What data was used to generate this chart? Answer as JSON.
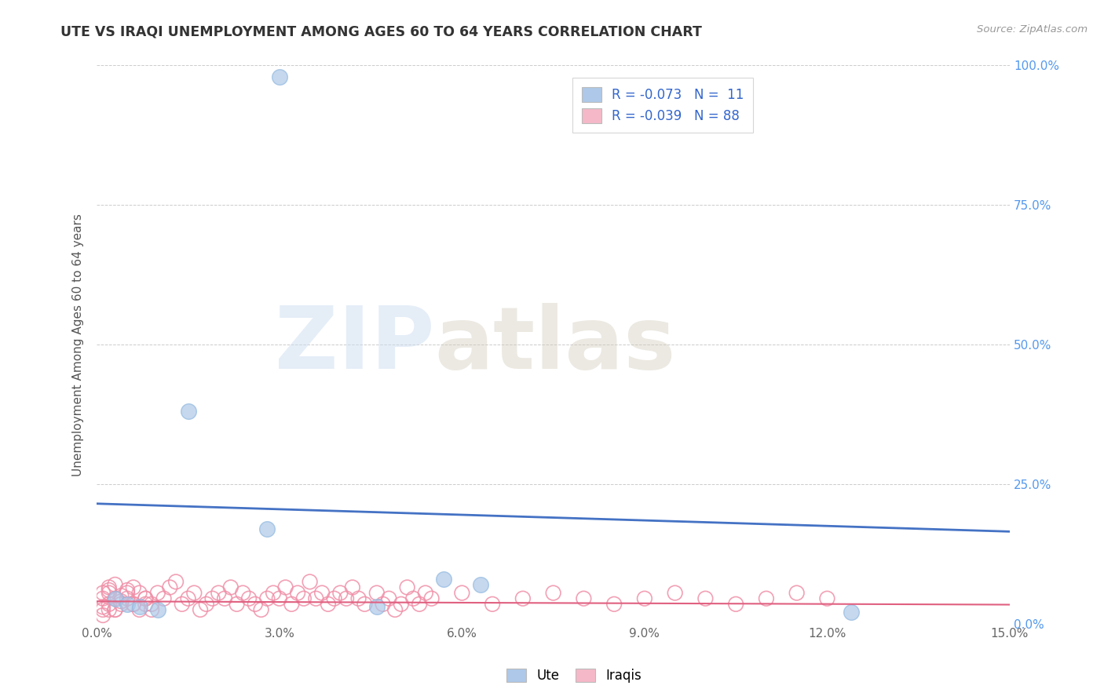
{
  "title": "UTE VS IRAQI UNEMPLOYMENT AMONG AGES 60 TO 64 YEARS CORRELATION CHART",
  "source": "Source: ZipAtlas.com",
  "ylabel": "Unemployment Among Ages 60 to 64 years",
  "xlim": [
    0.0,
    0.15
  ],
  "ylim": [
    0.0,
    1.0
  ],
  "xticks": [
    0.0,
    0.03,
    0.06,
    0.09,
    0.12,
    0.15
  ],
  "xticklabels": [
    "0.0%",
    "3.0%",
    "6.0%",
    "9.0%",
    "12.0%",
    "15.0%"
  ],
  "yticks": [
    0.0,
    0.25,
    0.5,
    0.75,
    1.0
  ],
  "yticklabels_right": [
    "0.0%",
    "25.0%",
    "50.0%",
    "75.0%",
    "100.0%"
  ],
  "watermark_zip": "ZIP",
  "watermark_atlas": "atlas",
  "legend_text_blue": "R = -0.073   N =  11",
  "legend_text_pink": "R = -0.039   N = 88",
  "legend_label_blue": "Ute",
  "legend_label_pink": "Iraqis",
  "blue_fill": "#adc8e8",
  "pink_fill": "#f5b8c8",
  "blue_edge": "#90b8e0",
  "pink_edge": "#f090a8",
  "blue_line_color": "#4472c4",
  "pink_line_color": "#e06080",
  "blue_scatter": [
    [
      0.03,
      0.98
    ],
    [
      0.015,
      0.38
    ],
    [
      0.028,
      0.17
    ],
    [
      0.003,
      0.045
    ],
    [
      0.005,
      0.035
    ],
    [
      0.007,
      0.03
    ],
    [
      0.01,
      0.025
    ],
    [
      0.046,
      0.03
    ],
    [
      0.057,
      0.08
    ],
    [
      0.063,
      0.07
    ],
    [
      0.124,
      0.02
    ]
  ],
  "pink_scatter": [
    [
      0.001,
      0.045
    ],
    [
      0.002,
      0.055
    ],
    [
      0.001,
      0.03
    ],
    [
      0.002,
      0.06
    ],
    [
      0.003,
      0.07
    ],
    [
      0.002,
      0.025
    ],
    [
      0.001,
      0.015
    ],
    [
      0.003,
      0.025
    ],
    [
      0.004,
      0.04
    ],
    [
      0.004,
      0.05
    ],
    [
      0.005,
      0.06
    ],
    [
      0.006,
      0.035
    ],
    [
      0.007,
      0.025
    ],
    [
      0.008,
      0.045
    ],
    [
      0.009,
      0.035
    ],
    [
      0.01,
      0.055
    ],
    [
      0.011,
      0.045
    ],
    [
      0.012,
      0.065
    ],
    [
      0.013,
      0.075
    ],
    [
      0.014,
      0.035
    ],
    [
      0.015,
      0.045
    ],
    [
      0.016,
      0.055
    ],
    [
      0.017,
      0.025
    ],
    [
      0.018,
      0.035
    ],
    [
      0.019,
      0.045
    ],
    [
      0.001,
      0.055
    ],
    [
      0.002,
      0.065
    ],
    [
      0.003,
      0.045
    ],
    [
      0.004,
      0.035
    ],
    [
      0.005,
      0.055
    ],
    [
      0.005,
      0.045
    ],
    [
      0.006,
      0.065
    ],
    [
      0.007,
      0.055
    ],
    [
      0.008,
      0.035
    ],
    [
      0.009,
      0.025
    ],
    [
      0.02,
      0.055
    ],
    [
      0.021,
      0.045
    ],
    [
      0.022,
      0.065
    ],
    [
      0.023,
      0.035
    ],
    [
      0.024,
      0.055
    ],
    [
      0.025,
      0.045
    ],
    [
      0.026,
      0.035
    ],
    [
      0.027,
      0.025
    ],
    [
      0.028,
      0.045
    ],
    [
      0.029,
      0.055
    ],
    [
      0.03,
      0.045
    ],
    [
      0.031,
      0.065
    ],
    [
      0.032,
      0.035
    ],
    [
      0.033,
      0.055
    ],
    [
      0.034,
      0.045
    ],
    [
      0.035,
      0.075
    ],
    [
      0.036,
      0.045
    ],
    [
      0.037,
      0.055
    ],
    [
      0.038,
      0.035
    ],
    [
      0.039,
      0.045
    ],
    [
      0.04,
      0.055
    ],
    [
      0.041,
      0.045
    ],
    [
      0.042,
      0.065
    ],
    [
      0.043,
      0.045
    ],
    [
      0.044,
      0.035
    ],
    [
      0.001,
      0.025
    ],
    [
      0.002,
      0.035
    ],
    [
      0.003,
      0.025
    ],
    [
      0.006,
      0.035
    ],
    [
      0.008,
      0.045
    ],
    [
      0.05,
      0.035
    ],
    [
      0.055,
      0.045
    ],
    [
      0.06,
      0.055
    ],
    [
      0.065,
      0.035
    ],
    [
      0.07,
      0.045
    ],
    [
      0.075,
      0.055
    ],
    [
      0.08,
      0.045
    ],
    [
      0.085,
      0.035
    ],
    [
      0.09,
      0.045
    ],
    [
      0.095,
      0.055
    ],
    [
      0.1,
      0.045
    ],
    [
      0.105,
      0.035
    ],
    [
      0.11,
      0.045
    ],
    [
      0.115,
      0.055
    ],
    [
      0.12,
      0.045
    ],
    [
      0.046,
      0.055
    ],
    [
      0.047,
      0.035
    ],
    [
      0.048,
      0.045
    ],
    [
      0.049,
      0.025
    ],
    [
      0.051,
      0.065
    ],
    [
      0.052,
      0.045
    ],
    [
      0.053,
      0.035
    ],
    [
      0.054,
      0.055
    ]
  ],
  "blue_trendline_x": [
    0.0,
    0.15
  ],
  "blue_trendline_y": [
    0.215,
    0.165
  ],
  "pink_trendline_x": [
    0.0,
    0.15
  ],
  "pink_trendline_y": [
    0.04,
    0.034
  ],
  "background_color": "#ffffff",
  "grid_color": "#cccccc"
}
